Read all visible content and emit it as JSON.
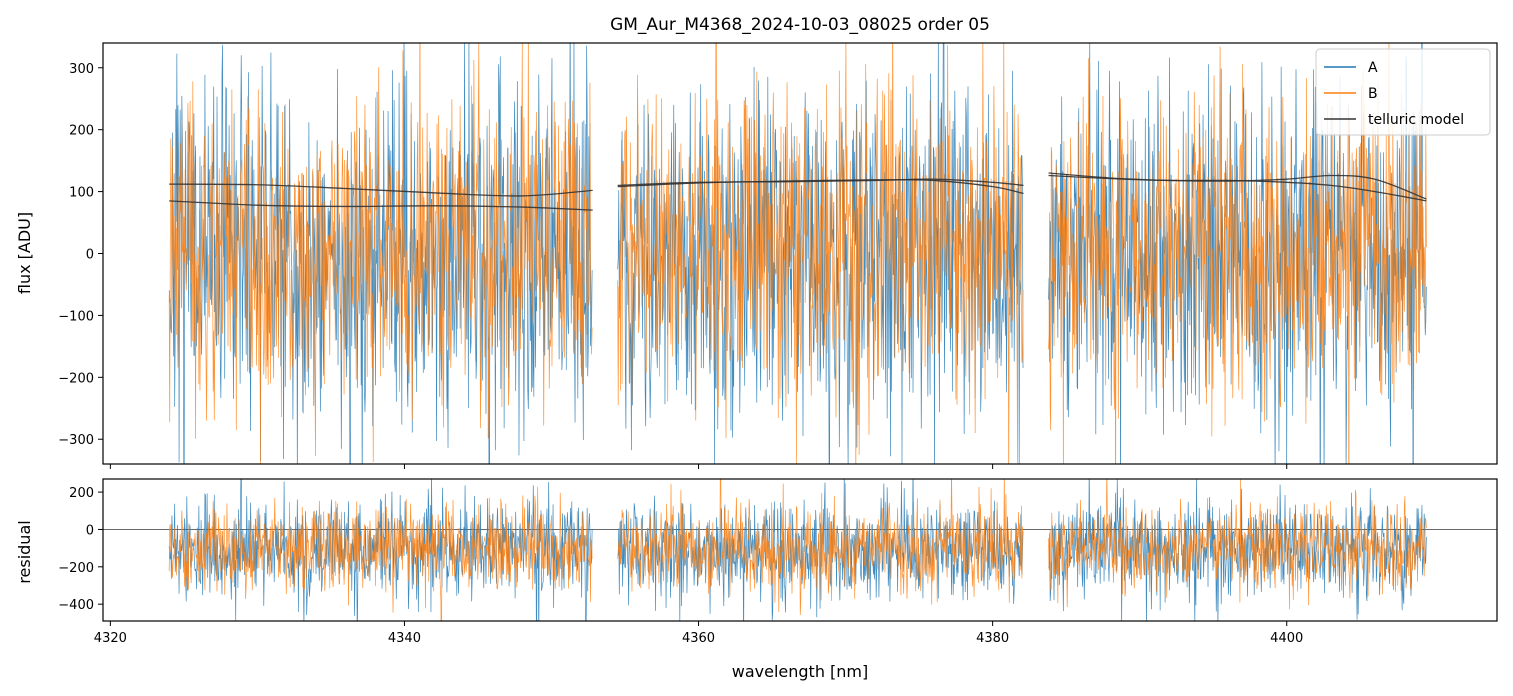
{
  "title": "GM_Aur_M4368_2024-10-03_08025  order 05",
  "colors": {
    "A": "#1f77b4",
    "B": "#ff7f0e",
    "telluric": "#333333",
    "zero_line": "#555555"
  },
  "chart_data": [
    {
      "type": "line",
      "panel": "flux",
      "xlabel": "",
      "ylabel": "flux [ADU]",
      "xlim": [
        4319.5,
        4414.3
      ],
      "ylim": [
        -340,
        340
      ],
      "yticks": [
        -300,
        -200,
        -100,
        0,
        100,
        200,
        300
      ],
      "ytick_labels": [
        "−300",
        "−200",
        "−100",
        "0",
        "100",
        "200",
        "300"
      ],
      "xticks": [
        4320,
        4340,
        4360,
        4380,
        4400
      ],
      "segments": [
        [
          4324.0,
          4352.8
        ],
        [
          4354.5,
          4382.1
        ],
        [
          4383.8,
          4409.5
        ]
      ],
      "series": [
        {
          "name": "A",
          "kind": "noisy",
          "mean": 0,
          "amplitude": 140,
          "line_width": 0.7
        },
        {
          "name": "B",
          "kind": "noisy",
          "mean": 10,
          "amplitude": 125,
          "line_width": 0.7
        }
      ],
      "telluric_model": {
        "name": "telluric model",
        "curves": [
          {
            "x": [
              4324,
              4330,
              4336,
              4342,
              4348,
              4352.8
            ],
            "y": [
              112,
              111,
              105,
              98,
              93,
              102
            ]
          },
          {
            "x": [
              4324,
              4330,
              4336,
              4342,
              4348,
              4352.8
            ],
            "y": [
              85,
              78,
              76,
              77,
              75,
              70
            ]
          },
          {
            "x": [
              4354.5,
              4360,
              4366,
              4372,
              4376,
              4380,
              4382.1
            ],
            "y": [
              110,
              115,
              116,
              118,
              120,
              115,
              110
            ]
          },
          {
            "x": [
              4354.5,
              4360,
              4366,
              4372,
              4376,
              4380,
              4382.1
            ],
            "y": [
              108,
              114,
              117,
              119,
              118,
              108,
              97
            ]
          },
          {
            "x": [
              4383.8,
              4388,
              4392,
              4396,
              4400,
              4403,
              4406,
              4409.5
            ],
            "y": [
              130,
              122,
              118,
              117,
              120,
              126,
              120,
              88
            ]
          },
          {
            "x": [
              4383.8,
              4388,
              4392,
              4396,
              4400,
              4403,
              4406,
              4409.5
            ],
            "y": [
              126,
              121,
              118,
              118,
              115,
              110,
              100,
              85
            ]
          }
        ]
      },
      "legend": {
        "placement": "top-right",
        "entries": [
          "A",
          "B",
          "telluric model"
        ]
      }
    },
    {
      "type": "line",
      "panel": "residual",
      "xlabel": "wavelength [nm]",
      "ylabel": "residual",
      "xlim": [
        4319.5,
        4414.3
      ],
      "ylim": [
        -490,
        270
      ],
      "yticks": [
        -400,
        -200,
        0,
        200
      ],
      "ytick_labels": [
        "−400",
        "−200",
        "0",
        "200"
      ],
      "xticks": [
        4320,
        4340,
        4360,
        4380,
        4400
      ],
      "xtick_labels": [
        "4320",
        "4340",
        "4360",
        "4380",
        "4400"
      ],
      "segments": [
        [
          4324.0,
          4352.8
        ],
        [
          4354.5,
          4382.1
        ],
        [
          4383.8,
          4409.5
        ]
      ],
      "series": [
        {
          "name": "A",
          "kind": "noisy",
          "mean": -110,
          "amplitude": 130,
          "line_width": 0.7
        },
        {
          "name": "B",
          "kind": "noisy",
          "mean": -100,
          "amplitude": 115,
          "line_width": 0.7
        }
      ],
      "reference_line": 0
    }
  ]
}
